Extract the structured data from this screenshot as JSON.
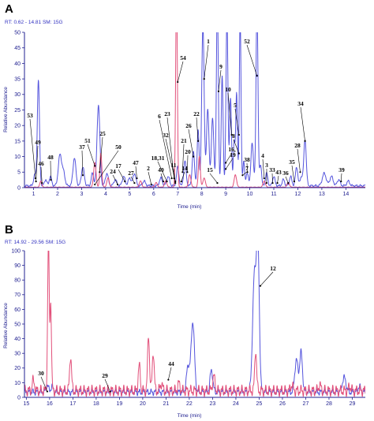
{
  "colors": {
    "blue": "#5555dd",
    "pink": "#e2507a",
    "axis": "#202090",
    "header": "#3030c0",
    "leader": "#000000"
  },
  "chart_data": [
    {
      "type": "line",
      "panel": "A",
      "header": "RT: 0.62 - 14.81   SM: 15G",
      "xlabel": "Time (min)",
      "ylabel": "Relative Abundance",
      "xlim": [
        0.62,
        14.81
      ],
      "ylim": [
        0,
        50
      ],
      "xticks": [
        1,
        2,
        3,
        4,
        5,
        6,
        7,
        8,
        9,
        10,
        11,
        12,
        13,
        14
      ],
      "yticks": [
        0,
        5,
        10,
        15,
        20,
        25,
        30,
        35,
        40,
        45,
        50
      ],
      "grid": false,
      "series": [
        {
          "color": "blue",
          "baseline": 0.6,
          "ripple": 0.25,
          "peaks": [
            [
              1.05,
              3.5,
              0.05
            ],
            [
              1.2,
              34,
              0.045
            ],
            [
              1.5,
              2,
              0.05
            ],
            [
              1.7,
              3,
              0.05
            ],
            [
              2.1,
              10,
              0.07
            ],
            [
              2.25,
              4,
              0.06
            ],
            [
              2.7,
              9,
              0.06
            ],
            [
              3.05,
              6,
              0.06
            ],
            [
              3.45,
              4,
              0.05
            ],
            [
              3.7,
              26,
              0.06
            ],
            [
              4.05,
              4,
              0.06
            ],
            [
              4.4,
              2,
              0.06
            ],
            [
              4.75,
              3,
              0.06
            ],
            [
              5.0,
              2.5,
              0.06
            ],
            [
              5.2,
              4,
              0.06
            ],
            [
              5.6,
              1.5,
              0.06
            ],
            [
              6.3,
              2.5,
              0.06
            ],
            [
              6.6,
              3,
              0.06
            ],
            [
              7.0,
              6,
              0.05
            ],
            [
              7.3,
              8,
              0.05
            ],
            [
              7.65,
              11,
              0.05
            ],
            [
              7.85,
              18,
              0.04
            ],
            [
              8.05,
              52,
              0.05
            ],
            [
              8.25,
              25,
              0.05
            ],
            [
              8.45,
              22,
              0.05
            ],
            [
              8.65,
              60,
              0.04
            ],
            [
              8.85,
              35,
              0.04
            ],
            [
              9.05,
              55,
              0.04
            ],
            [
              9.2,
              28,
              0.04
            ],
            [
              9.35,
              14,
              0.035
            ],
            [
              9.45,
              30,
              0.035
            ],
            [
              9.6,
              55,
              0.035
            ],
            [
              9.75,
              8,
              0.035
            ],
            [
              9.9,
              4,
              0.05
            ],
            [
              10.1,
              14,
              0.05
            ],
            [
              10.3,
              59,
              0.04
            ],
            [
              10.45,
              7,
              0.04
            ],
            [
              10.7,
              4,
              0.05
            ],
            [
              11.0,
              3,
              0.05
            ],
            [
              11.4,
              2,
              0.05
            ],
            [
              11.7,
              3,
              0.05
            ],
            [
              11.95,
              6,
              0.05
            ],
            [
              12.15,
              3,
              0.05
            ],
            [
              12.3,
              15,
              0.05
            ],
            [
              13.1,
              4,
              0.08
            ],
            [
              13.4,
              3,
              0.07
            ],
            [
              13.7,
              2,
              0.06
            ],
            [
              14.1,
              1.5,
              0.06
            ]
          ]
        },
        {
          "color": "pink",
          "baseline": 0.15,
          "ripple": 0.05,
          "peaks": [
            [
              1.3,
              2,
              0.04
            ],
            [
              3.55,
              8,
              0.05
            ],
            [
              3.8,
              11,
              0.04
            ],
            [
              4.1,
              3,
              0.05
            ],
            [
              5.45,
              2,
              0.05
            ],
            [
              6.1,
              1.5,
              0.05
            ],
            [
              6.5,
              2,
              0.05
            ],
            [
              6.95,
              65,
              0.035
            ],
            [
              7.5,
              4,
              0.05
            ],
            [
              7.9,
              10,
              0.04
            ],
            [
              8.1,
              3,
              0.05
            ],
            [
              9.4,
              4,
              0.05
            ],
            [
              10.6,
              2,
              0.05
            ],
            [
              11.6,
              1.5,
              0.05
            ]
          ]
        }
      ],
      "annotations": [
        {
          "text": "53",
          "tip": [
            1.08,
            3
          ]
        },
        {
          "text": "49",
          "tip": [
            1.1,
            2
          ]
        },
        {
          "text": "46",
          "tip": [
            1.35,
            1.5
          ]
        },
        {
          "text": "48",
          "tip": [
            1.72,
            2.5
          ]
        },
        {
          "text": "37",
          "tip": [
            3.05,
            4
          ]
        },
        {
          "text": "51",
          "tip": [
            3.55,
            7
          ]
        },
        {
          "text": "25",
          "tip": [
            3.75,
            5
          ]
        },
        {
          "text": "50",
          "tip": [
            3.55,
            1
          ]
        },
        {
          "text": "24",
          "tip": [
            4.5,
            1
          ]
        },
        {
          "text": "17",
          "tip": [
            4.8,
            2
          ]
        },
        {
          "text": "27",
          "tip": [
            5.2,
            1.5
          ]
        },
        {
          "text": "47",
          "tip": [
            5.3,
            3
          ]
        },
        {
          "text": "2",
          "tip": [
            5.9,
            1
          ]
        },
        {
          "text": "40",
          "tip": [
            6.4,
            2
          ]
        },
        {
          "text": "18,31",
          "tip": [
            6.55,
            2
          ]
        },
        {
          "text": "6",
          "tip": [
            6.75,
            3
          ]
        },
        {
          "text": "23",
          "tip": [
            6.85,
            3
          ]
        },
        {
          "text": "32",
          "tip": [
            6.9,
            2
          ]
        },
        {
          "text": "11",
          "tip": [
            6.9,
            1.5
          ]
        },
        {
          "text": "54",
          "tip": [
            7.0,
            34
          ]
        },
        {
          "text": "21",
          "tip": [
            7.2,
            5
          ]
        },
        {
          "text": "20",
          "tip": [
            7.4,
            5
          ]
        },
        {
          "text": "14",
          "tip": [
            7.15,
            2
          ]
        },
        {
          "text": "26",
          "tip": [
            7.65,
            10
          ]
        },
        {
          "text": "22",
          "tip": [
            7.85,
            15
          ]
        },
        {
          "text": "1",
          "tip": [
            8.1,
            35
          ]
        },
        {
          "text": "9",
          "tip": [
            8.7,
            31
          ]
        },
        {
          "text": "10",
          "tip": [
            9.25,
            17
          ]
        },
        {
          "text": "16,",
          "tip": [
            9.0,
            8
          ]
        },
        {
          "text": "19",
          "tip": [
            9.0,
            6
          ]
        },
        {
          "text": "15",
          "tip": [
            8.65,
            1.5
          ]
        },
        {
          "text": "5",
          "tip": [
            9.55,
            17
          ]
        },
        {
          "text": "8",
          "tip": [
            9.55,
            11
          ]
        },
        {
          "text": "38",
          "tip": [
            9.9,
            5
          ]
        },
        {
          "text": "7",
          "tip": [
            9.7,
            4
          ]
        },
        {
          "text": "52",
          "tip": [
            10.3,
            36
          ]
        },
        {
          "text": "4",
          "tip": [
            10.6,
            3
          ]
        },
        {
          "text": "3",
          "tip": [
            10.7,
            1.5
          ]
        },
        {
          "text": "33",
          "tip": [
            10.95,
            1.5
          ]
        },
        {
          "text": "43",
          "tip": [
            11.15,
            1.5
          ]
        },
        {
          "text": "36",
          "tip": [
            11.6,
            1.5
          ]
        },
        {
          "text": "35",
          "tip": [
            11.85,
            2
          ]
        },
        {
          "text": "28",
          "tip": [
            12.1,
            5
          ]
        },
        {
          "text": "34",
          "tip": [
            12.3,
            15
          ]
        },
        {
          "text": "39",
          "tip": [
            13.8,
            2
          ]
        }
      ]
    },
    {
      "type": "line",
      "panel": "B",
      "header": "RT: 14.92 - 29.56   SM: 15G",
      "xlabel": "Time (min)",
      "ylabel": "Relative Abundance",
      "xlim": [
        14.92,
        29.56
      ],
      "ylim": [
        0,
        100
      ],
      "xticks": [
        15,
        16,
        17,
        18,
        19,
        20,
        21,
        22,
        23,
        24,
        25,
        26,
        27,
        28,
        29
      ],
      "yticks": [
        0,
        10,
        20,
        30,
        40,
        50,
        60,
        70,
        80,
        90,
        100
      ],
      "grid": false,
      "series": [
        {
          "color": "blue",
          "baseline": 3.5,
          "ripple": 1.5,
          "peaks": [
            [
              15.9,
              5,
              0.05
            ],
            [
              16.1,
              4,
              0.05
            ],
            [
              21.95,
              18,
              0.07
            ],
            [
              22.15,
              48,
              0.07
            ],
            [
              22.95,
              15,
              0.06
            ],
            [
              24.8,
              80,
              0.08
            ],
            [
              24.95,
              92,
              0.06
            ],
            [
              26.6,
              22,
              0.07
            ],
            [
              26.8,
              27,
              0.06
            ],
            [
              28.65,
              10,
              0.08
            ],
            [
              29.3,
              4,
              0.06
            ]
          ]
        },
        {
          "color": "pink",
          "baseline": 4.5,
          "ripple": 2.5,
          "peaks": [
            [
              15.3,
              7,
              0.05
            ],
            [
              15.95,
              101,
              0.035
            ],
            [
              16.05,
              60,
              0.03
            ],
            [
              16.9,
              24,
              0.04
            ],
            [
              19.85,
              17,
              0.045
            ],
            [
              20.25,
              38,
              0.04
            ],
            [
              20.45,
              27,
              0.04
            ],
            [
              20.8,
              5,
              0.05
            ],
            [
              21.55,
              5,
              0.05
            ],
            [
              23.05,
              10,
              0.05
            ],
            [
              24.85,
              28,
              0.04
            ],
            [
              26.4,
              4,
              0.05
            ],
            [
              27.6,
              4,
              0.05
            ],
            [
              28.9,
              3,
              0.05
            ]
          ]
        }
      ],
      "annotations": [
        {
          "text": "12",
          "tip": [
            25.05,
            76
          ]
        },
        {
          "text": "30",
          "tip": [
            15.9,
            4
          ]
        },
        {
          "text": "29",
          "tip": [
            18.6,
            4
          ]
        },
        {
          "text": "44",
          "tip": [
            21.1,
            12
          ]
        }
      ]
    }
  ]
}
